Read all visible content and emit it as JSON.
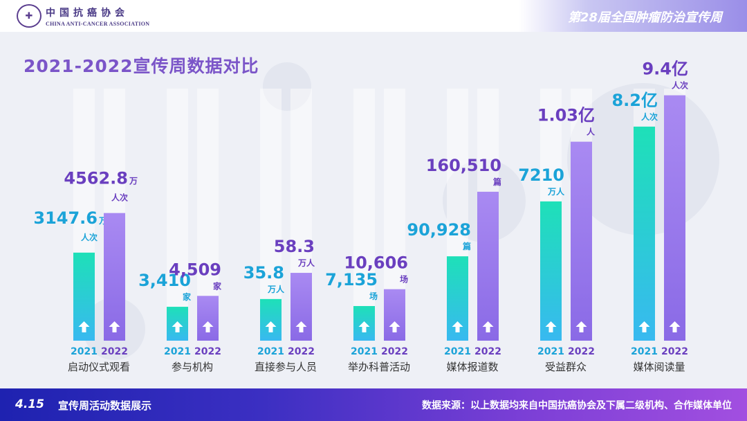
{
  "header": {
    "logo_cn": "中国抗癌协会",
    "logo_en": "CHINA ANTI-CANCER ASSOCIATION",
    "event_title": "第28届全国肿瘤防治宣传周"
  },
  "page_title": "2021-2022宣传周数据对比",
  "footer": {
    "logo_text": "4.15",
    "left_text": "宣传周活动数据展示",
    "right_text": "数据来源：以上数据均来自中国抗癌协会及下属二级机构、合作媒体单位"
  },
  "colors": {
    "year_2021": "#1ec8c0",
    "year_2022": "#8b5fe0",
    "label_2021": "#1ba3d8",
    "label_2022": "#6a3fbf",
    "title": "#7b55c8"
  },
  "chart_data": {
    "type": "bar",
    "title": "2021-2022宣传周数据对比",
    "series": [
      {
        "name": "2021"
      },
      {
        "name": "2022"
      }
    ],
    "groups": [
      {
        "category": "启动仪式观看",
        "values": [
          3147.6,
          4562.8
        ],
        "labels": [
          "3147.6",
          "4562.8"
        ],
        "units": [
          "万",
          "万"
        ],
        "subunits": [
          "人次",
          "人次"
        ],
        "years": [
          "2021",
          "2022"
        ],
        "unit_in_millions": 10000
      },
      {
        "category": "参与机构",
        "values": [
          3410,
          4509
        ],
        "labels": [
          "3,410",
          "4,509"
        ],
        "units": [
          "家",
          "家"
        ],
        "subunits": [
          "",
          ""
        ],
        "years": [
          "2021",
          "2022"
        ]
      },
      {
        "category": "直接参与人员",
        "values": [
          35.8,
          58.3
        ],
        "labels": [
          "35.8",
          "58.3"
        ],
        "units": [
          "万人",
          "万人"
        ],
        "subunits": [
          "",
          ""
        ],
        "years": [
          "2021",
          "2022"
        ]
      },
      {
        "category": "举办科普活动",
        "values": [
          7135,
          10606
        ],
        "labels": [
          "7,135",
          "10,606"
        ],
        "units": [
          "场",
          "场"
        ],
        "subunits": [
          "",
          ""
        ],
        "years": [
          "2021",
          "2022"
        ]
      },
      {
        "category": "媒体报道数",
        "values": [
          90928,
          160510
        ],
        "labels": [
          "90,928",
          "160,510"
        ],
        "units": [
          "篇",
          "篇"
        ],
        "subunits": [
          "",
          ""
        ],
        "years": [
          "2021",
          "2022"
        ]
      },
      {
        "category": "受益群众",
        "values": [
          7210,
          10300
        ],
        "labels": [
          "7210",
          "1.03亿"
        ],
        "units": [
          "万人",
          "人"
        ],
        "subunits": [
          "",
          ""
        ],
        "years": [
          "2021",
          "2022"
        ]
      },
      {
        "category": "媒体阅读量",
        "values": [
          8.2,
          9.4
        ],
        "labels": [
          "8.2亿",
          "9.4亿"
        ],
        "units": [
          "人次",
          "人次"
        ],
        "subunits": [
          "",
          ""
        ],
        "years": [
          "2021",
          "2022"
        ]
      }
    ]
  }
}
